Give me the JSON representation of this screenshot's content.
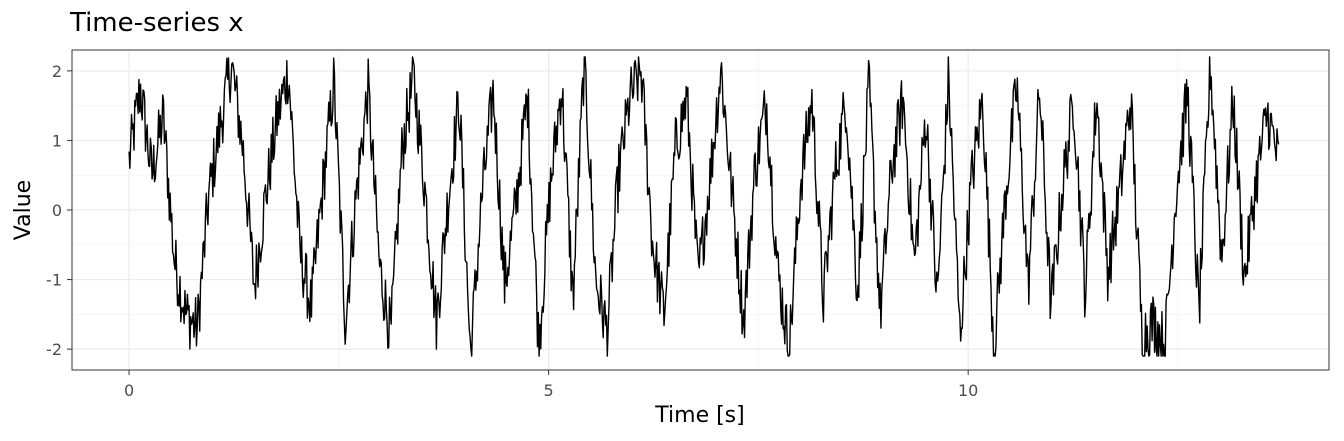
{
  "chart_data": {
    "type": "line",
    "title": "Time-series x",
    "xlabel": "Time [s]",
    "ylabel": "Value",
    "xlim": [
      -0.68,
      14.3
    ],
    "ylim": [
      -2.3,
      2.3
    ],
    "x_ticks": [
      0,
      5,
      10
    ],
    "x_tick_labels": [
      "0",
      "5",
      "10"
    ],
    "y_ticks": [
      -2,
      -1,
      0,
      1,
      2
    ],
    "y_tick_labels": [
      "-2",
      "-1",
      "0",
      "1",
      "2"
    ],
    "grid": true,
    "background": "#ffffff",
    "panel_border": "#333333",
    "grid_major_color": "#ebebeb",
    "line_color": "#000000",
    "series": [
      {
        "x_start": 0.0,
        "x_end": 13.7,
        "n_points": 1400,
        "sample_values": [
          0.7,
          1.75,
          0.5,
          1.35,
          -0.75,
          -1.5,
          -1.7,
          0.2,
          1.2,
          2.1,
          0.9,
          -1.1,
          0.2,
          1.3,
          2.0,
          -0.6,
          -1.4,
          0.3,
          1.85,
          -1.6,
          0.3,
          1.75,
          -0.8,
          -1.8,
          0.9,
          1.9,
          0.3,
          -1.6,
          0.1,
          1.6,
          -2.1,
          0.2,
          1.7,
          -1.1,
          0.1,
          1.65,
          -1.95,
          0.3,
          1.8,
          -1.3,
          2.2,
          -1.0,
          -1.75,
          0.5,
          1.6,
          2.0,
          -0.5,
          -1.5,
          0.9,
          1.6,
          -1.0,
          0.4,
          2.05,
          0.2,
          -1.6,
          0.6,
          1.55,
          -0.9,
          -2.0,
          0.4,
          1.6,
          -1.3,
          0.5,
          1.6,
          -1.2,
          1.8,
          -1.5,
          0.6,
          1.6,
          -0.8,
          1.4,
          -1.3,
          1.9,
          -1.8,
          0.4,
          1.6,
          -2.0,
          0.2,
          1.8,
          -1.1,
          1.75,
          -1.4,
          0.3,
          1.6,
          -1.2,
          1.65,
          -0.9,
          0.2,
          1.6,
          -1.8,
          -1.6,
          -1.95,
          0.3,
          1.7,
          -1.5,
          2.1,
          -0.7,
          1.6,
          -1.0,
          0.4,
          1.4,
          0.7
        ]
      }
    ]
  }
}
